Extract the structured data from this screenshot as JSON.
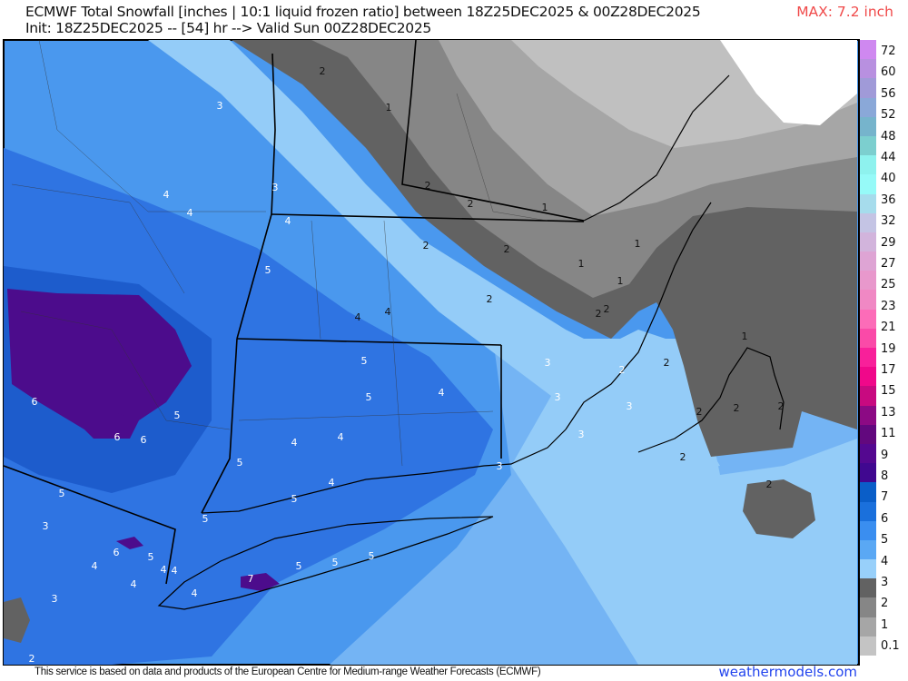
{
  "header": {
    "title_line1": "ECMWF Total Snowfall [inches | 10:1 liquid frozen ratio] between 18Z25DEC2025 & 00Z28DEC2025",
    "title_line2": "Init: 18Z25DEC2025 -- [54] hr --> Valid Sun 00Z28DEC2025",
    "max_label": "MAX: 7.2 inch"
  },
  "legend": {
    "labels": [
      "72",
      "60",
      "56",
      "52",
      "48",
      "44",
      "40",
      "36",
      "32",
      "29",
      "27",
      "25",
      "23",
      "21",
      "19",
      "17",
      "15",
      "13",
      "11",
      "9",
      "8",
      "7",
      "6",
      "5",
      "4",
      "3",
      "2",
      "1",
      "0.1"
    ],
    "colors": [
      "#cf88f0",
      "#b890e0",
      "#a09ad8",
      "#8aa8d8",
      "#76b4cc",
      "#7ccfcf",
      "#8ef2ee",
      "#96faf8",
      "#a6dcec",
      "#c4c4e4",
      "#d2b4dc",
      "#dea4d4",
      "#e898cc",
      "#f088c4",
      "#fc6cb8",
      "#fa4aa8",
      "#f8209a",
      "#f0088a",
      "#c80a80",
      "#8c0a84",
      "#62087e",
      "#540890",
      "#400890",
      "#0a5ec8",
      "#1a70dc",
      "#3a8ef0",
      "#5aa8f4",
      "#98d0fa",
      "#626262",
      "#868686",
      "#a6a6a6",
      "#c4c4c4"
    ],
    "unit_colors": {
      "light_blue": "#98d0fa",
      "blue": "#3a8ef0",
      "dark_gray": "#626262",
      "purple": "#4a0a8a"
    }
  },
  "map": {
    "contour_labels": [
      "2",
      "1",
      "3",
      "3",
      "4",
      "4",
      "4",
      "2",
      "2",
      "1",
      "2",
      "2",
      "1",
      "1",
      "5",
      "1",
      "2",
      "2",
      "2",
      "4",
      "4",
      "1",
      "5",
      "3",
      "2",
      "2",
      "5",
      "4",
      "3",
      "3",
      "2",
      "2",
      "2",
      "6",
      "5",
      "6",
      "6",
      "4",
      "4",
      "3",
      "5",
      "2",
      "4",
      "3",
      "2",
      "5",
      "5",
      "3",
      "5",
      "6",
      "5",
      "4",
      "4",
      "4",
      "5",
      "5",
      "5",
      "7",
      "4",
      "4",
      "3",
      "2"
    ]
  },
  "footer": {
    "disclaimer": "This service is based on data and products of the European Centre for Medium-range Weather Forecasts (ECMWF)",
    "brand": "weathermodels.com"
  }
}
